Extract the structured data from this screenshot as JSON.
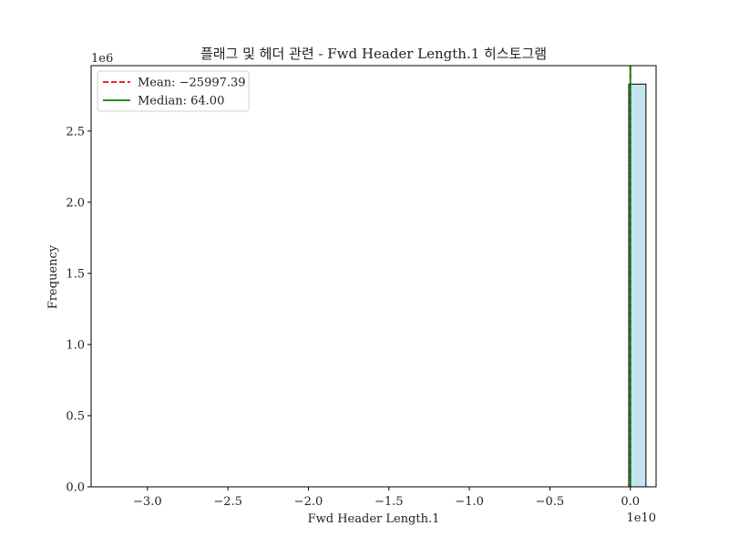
{
  "chart_data": {
    "type": "bar",
    "title": "플래그 및 헤더 관련 - Fwd Header Length.1 히스토그램",
    "xlabel": "Fwd Header Length.1",
    "ylabel": "Frequency",
    "x_offset_label": "1e10",
    "y_offset_label": "1e6",
    "x_scale": 10000000000,
    "y_scale": 1000000,
    "xlim": [
      -33500000000.0,
      1600000000.0
    ],
    "ylim": [
      0,
      2960000
    ],
    "x_ticks": [
      -3.0,
      -2.5,
      -2.0,
      -1.5,
      -1.0,
      -0.5,
      0.0
    ],
    "x_tick_labels": [
      "−3.0",
      "−2.5",
      "−2.0",
      "−1.5",
      "−1.0",
      "−0.5",
      "0.0"
    ],
    "y_ticks": [
      0.0,
      0.5,
      1.0,
      1.5,
      2.0,
      2.5
    ],
    "y_tick_labels": [
      "0.0",
      "0.5",
      "1.0",
      "1.5",
      "2.0",
      "2.5"
    ],
    "bin_start": -32200000000.0,
    "bin_width": 1070000000.0,
    "bin_counts": [
      0,
      0,
      0,
      0,
      0,
      0,
      0,
      0,
      0,
      0,
      0,
      0,
      0,
      0,
      0,
      0,
      0,
      0,
      0,
      0,
      0,
      0,
      0,
      0,
      0,
      0,
      0,
      0,
      0,
      0,
      2830000
    ],
    "bar_color": "#c5e4f0",
    "bar_edge_color": "#000000",
    "lines": [
      {
        "name": "Mean: −25997.39",
        "x": -25997.39,
        "color": "#ff0000",
        "style": "dashed"
      },
      {
        "name": "Median: 64.00",
        "x": 64.0,
        "color": "#008000",
        "style": "solid"
      }
    ],
    "legend_position": "top-left",
    "grid": false
  }
}
